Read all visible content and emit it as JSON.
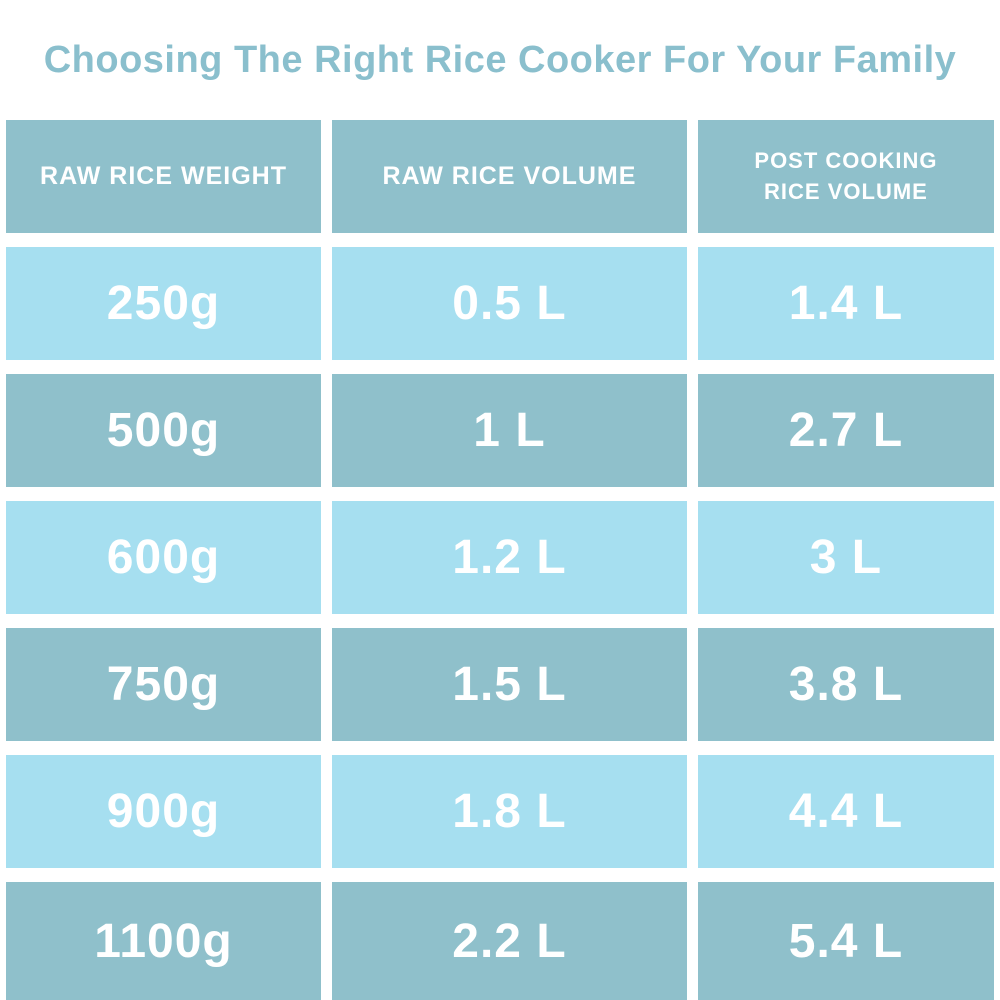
{
  "title": "Choosing The Right Rice Cooker For Your Family",
  "colors": {
    "title_text": "#8abfcd",
    "header_bg": "#8fc0cb",
    "row_dark_bg": "#8fc0cb",
    "row_light_bg": "#a6dff0",
    "cell_text": "#ffffff",
    "page_bg": "#ffffff"
  },
  "table": {
    "headers": [
      "RAW RICE WEIGHT",
      "RAW RICE VOLUME",
      "POST COOKING\nRICE VOLUME"
    ],
    "rows": [
      {
        "cells": [
          "250g",
          "0.5 L",
          "1.4 L"
        ]
      },
      {
        "cells": [
          "500g",
          "1 L",
          "2.7 L"
        ]
      },
      {
        "cells": [
          "600g",
          "1.2 L",
          "3 L"
        ]
      },
      {
        "cells": [
          "750g",
          "1.5 L",
          "3.8 L"
        ]
      },
      {
        "cells": [
          "900g",
          "1.8 L",
          "4.4 L"
        ]
      },
      {
        "cells": [
          "1100g",
          "2.2 L",
          "5.4 L"
        ]
      }
    ]
  },
  "chart_data": {
    "type": "table",
    "title": "Choosing The Right Rice Cooker For Your Family",
    "columns": [
      "RAW RICE WEIGHT",
      "RAW RICE VOLUME",
      "POST COOKING RICE VOLUME"
    ],
    "rows": [
      [
        "250g",
        "0.5 L",
        "1.4 L"
      ],
      [
        "500g",
        "1 L",
        "2.7 L"
      ],
      [
        "600g",
        "1.2 L",
        "3 L"
      ],
      [
        "750g",
        "1.5 L",
        "3.8 L"
      ],
      [
        "900g",
        "1.8 L",
        "4.4 L"
      ],
      [
        "1100g",
        "2.2 L",
        "5.4 L"
      ]
    ],
    "raw_rice_weight_g": [
      250,
      500,
      600,
      750,
      900,
      1100
    ],
    "raw_rice_volume_l": [
      0.5,
      1,
      1.2,
      1.5,
      1.8,
      2.2
    ],
    "post_cooking_rice_volume_l": [
      1.4,
      2.7,
      3,
      3.8,
      4.4,
      5.4
    ],
    "layout_hints": {
      "header_row_shaded": true,
      "alternating_row_shades": [
        "light",
        "dark"
      ],
      "grid": "white gutters between cells"
    }
  }
}
